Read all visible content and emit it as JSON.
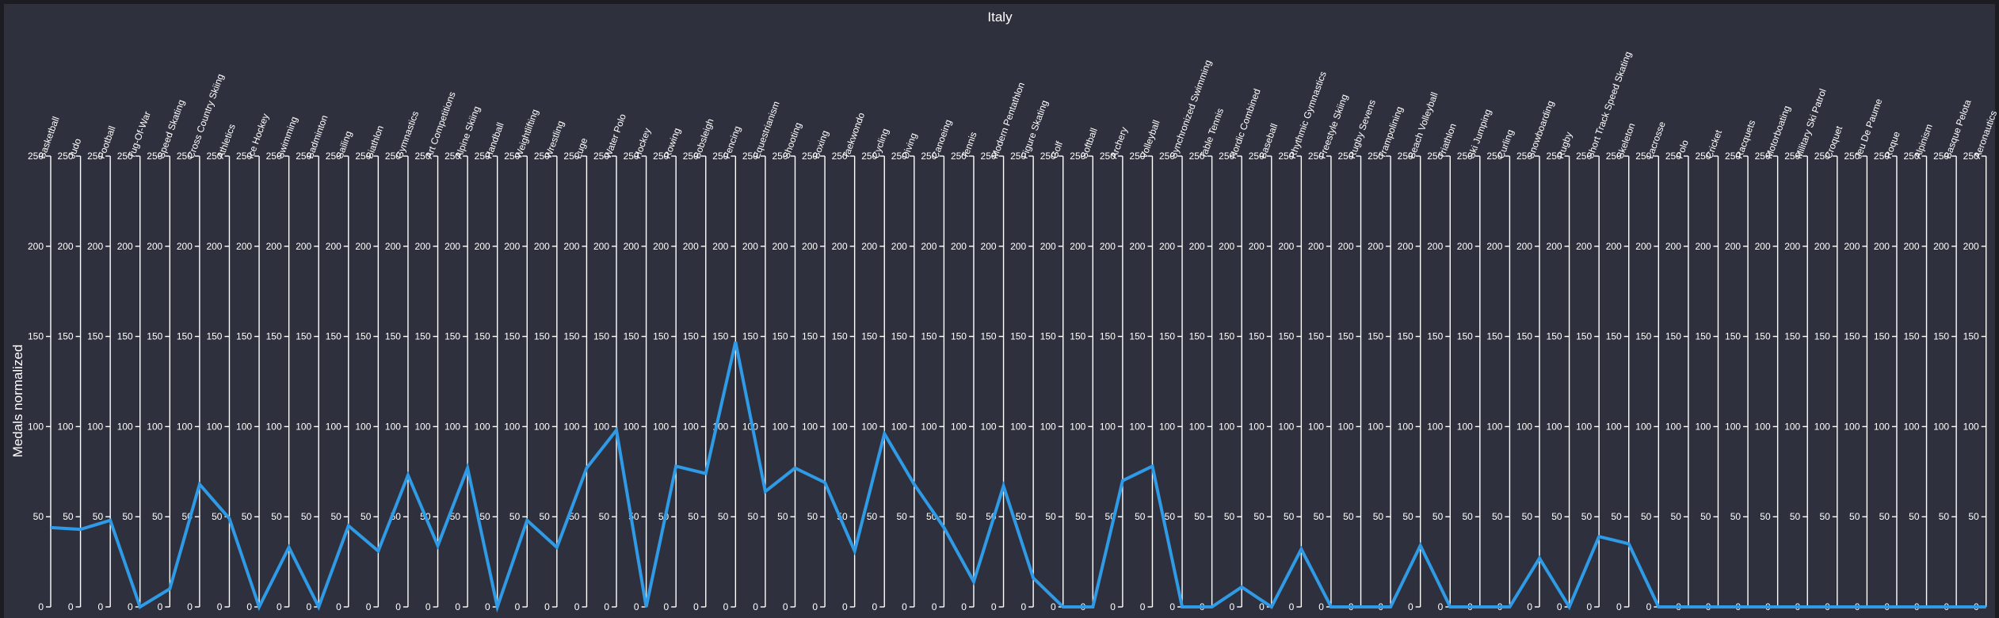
{
  "colors": {
    "background": "#2e313d",
    "outer_background": "#1b1d22",
    "axis": "#ffffff",
    "text": "#ffffff",
    "series": "#2f9be7"
  },
  "chart_data": {
    "type": "line",
    "title": "Italy",
    "xlabel": "",
    "ylabel": "Medals normalized",
    "ylim": [
      0,
      250
    ],
    "y_ticks": [
      0,
      50,
      100,
      150,
      200,
      250
    ],
    "grid": false,
    "legend": "none",
    "categories": [
      "Basketball",
      "Judo",
      "Football",
      "Tug-Of-War",
      "Speed Skating",
      "Cross Country Skiing",
      "Athletics",
      "Ice Hockey",
      "Swimming",
      "Badminton",
      "Sailing",
      "Biathlon",
      "Gymnastics",
      "Art Competitions",
      "Alpine Skiing",
      "Handball",
      "Weightlifting",
      "Wrestling",
      "Luge",
      "Water Polo",
      "Hockey",
      "Rowing",
      "Bobsleigh",
      "Fencing",
      "Equestrianism",
      "Shooting",
      "Boxing",
      "Taekwondo",
      "Cycling",
      "Diving",
      "Canoeing",
      "Tennis",
      "Modern Pentathlon",
      "Figure Skating",
      "Golf",
      "Softball",
      "Archery",
      "Volleyball",
      "Synchronized Swimming",
      "Table Tennis",
      "Nordic Combined",
      "Baseball",
      "Rhythmic Gymnastics",
      "Freestyle Skiing",
      "Rugby Sevens",
      "Trampolining",
      "Beach Volleyball",
      "Triathlon",
      "Ski Jumping",
      "Curling",
      "Snowboarding",
      "Rugby",
      "Short Track Speed Skating",
      "Skeleton",
      "Lacrosse",
      "Polo",
      "Cricket",
      "Racquets",
      "Motorboating",
      "Military Ski Patrol",
      "Croquet",
      "Jeu De Paume",
      "Roque",
      "Alpinism",
      "Basque Pelota",
      "Aeronautics"
    ],
    "series": [
      {
        "values": [
          44,
          43,
          48,
          0,
          10,
          68,
          49,
          0,
          33,
          0,
          45,
          31,
          73,
          34,
          77,
          0,
          48,
          33,
          77,
          98,
          0,
          78,
          74,
          147,
          64,
          77,
          69,
          31,
          96,
          68,
          44,
          14,
          67,
          16,
          0,
          0,
          70,
          78,
          0,
          0,
          11,
          0,
          32,
          0,
          0,
          0,
          34,
          0,
          0,
          0,
          27,
          0,
          39,
          35,
          0,
          0,
          0,
          0,
          0,
          0,
          0,
          0,
          0,
          0,
          0,
          0
        ]
      }
    ]
  }
}
